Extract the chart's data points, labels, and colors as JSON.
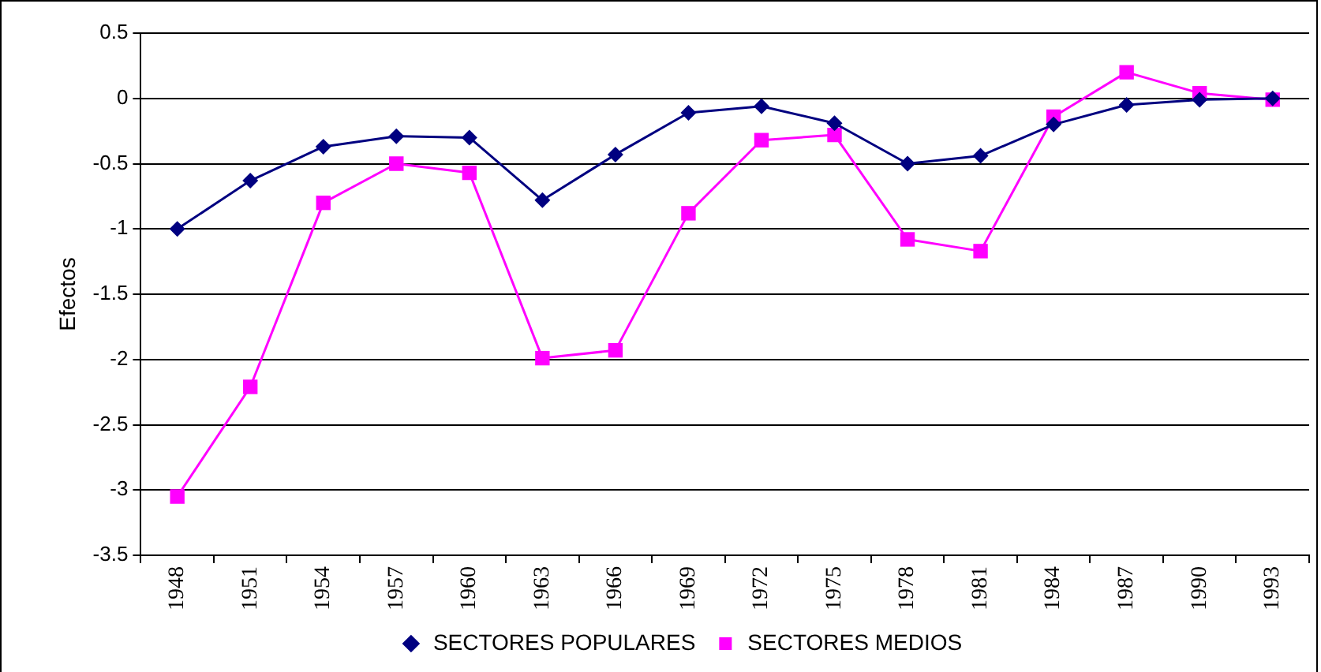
{
  "chart_data": {
    "type": "line",
    "ylabel": "Efectos",
    "categories": [
      "1948",
      "1951",
      "1954",
      "1957",
      "1960",
      "1963",
      "1966",
      "1969",
      "1972",
      "1975",
      "1978",
      "1981",
      "1984",
      "1987",
      "1990",
      "1993"
    ],
    "series": [
      {
        "name": "SECTORES POPULARES",
        "color": "#000080",
        "marker": "diamond",
        "values": [
          -1.0,
          -0.63,
          -0.37,
          -0.29,
          -0.3,
          -0.78,
          -0.43,
          -0.11,
          -0.06,
          -0.19,
          -0.5,
          -0.44,
          -0.2,
          -0.05,
          -0.01,
          0.0
        ]
      },
      {
        "name": "SECTORES MEDIOS",
        "color": "#ff00ff",
        "marker": "square",
        "values": [
          -3.05,
          -2.21,
          -0.8,
          -0.5,
          -0.57,
          -1.99,
          -1.93,
          -0.88,
          -0.32,
          -0.28,
          -1.08,
          -1.17,
          -0.14,
          0.2,
          0.04,
          -0.01
        ]
      }
    ],
    "ylim": [
      -3.5,
      0.5
    ],
    "yticks": [
      -3.5,
      -3,
      -2.5,
      -2,
      -1.5,
      -1,
      -0.5,
      0,
      0.5
    ],
    "grid": "y",
    "legend": "bottom"
  }
}
